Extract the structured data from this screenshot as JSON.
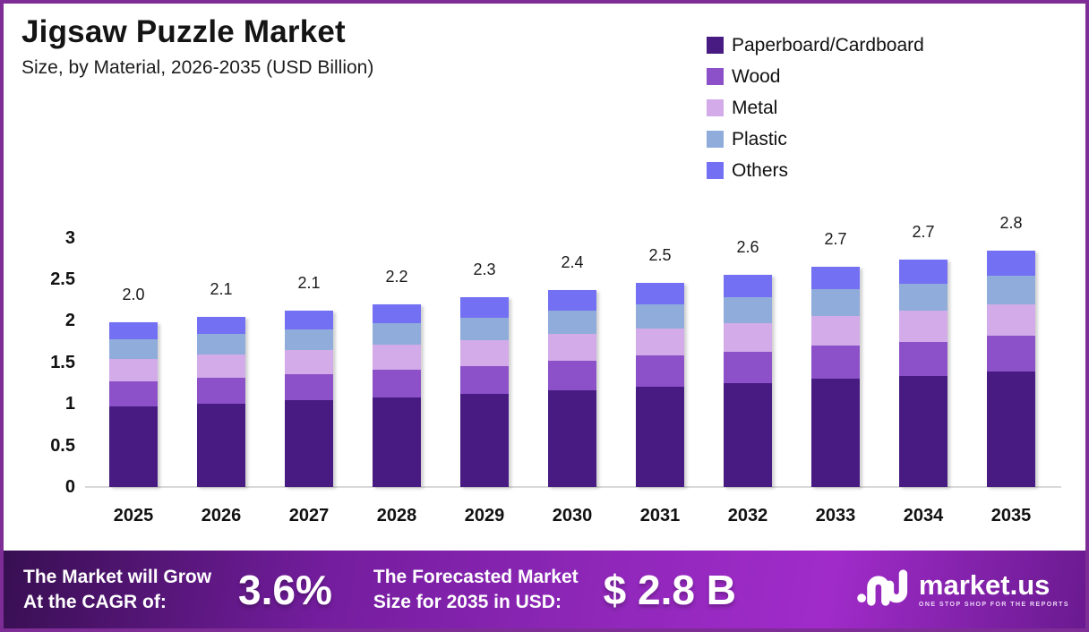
{
  "header": {
    "title": "Jigsaw Puzzle Market",
    "subtitle": "Size, by Material, 2026-2035 (USD Billion)"
  },
  "chart_data": {
    "type": "bar",
    "stacked": true,
    "title": "Jigsaw Puzzle Market",
    "subtitle": "Size, by Material, 2026-2035 (USD Billion)",
    "unit": "USD Billion",
    "categories": [
      "2025",
      "2026",
      "2027",
      "2028",
      "2029",
      "2030",
      "2031",
      "2032",
      "2033",
      "2034",
      "2035"
    ],
    "bar_total_labels": [
      "2.0",
      "2.1",
      "2.1",
      "2.2",
      "2.3",
      "2.4",
      "2.5",
      "2.6",
      "2.7",
      "2.7",
      "2.8"
    ],
    "series": [
      {
        "name": "Paperboard/Cardboard",
        "color": "#471B82",
        "values": [
          0.97,
          1.0,
          1.04,
          1.08,
          1.12,
          1.16,
          1.21,
          1.25,
          1.3,
          1.34,
          1.39
        ]
      },
      {
        "name": "Wood",
        "color": "#8C51C9",
        "values": [
          0.3,
          0.31,
          0.32,
          0.33,
          0.34,
          0.36,
          0.37,
          0.38,
          0.4,
          0.41,
          0.43
        ]
      },
      {
        "name": "Metal",
        "color": "#D2ABE8",
        "values": [
          0.27,
          0.28,
          0.29,
          0.3,
          0.31,
          0.32,
          0.33,
          0.34,
          0.36,
          0.37,
          0.38
        ]
      },
      {
        "name": "Plastic",
        "color": "#90ACDB",
        "values": [
          0.24,
          0.25,
          0.25,
          0.26,
          0.27,
          0.28,
          0.29,
          0.31,
          0.32,
          0.33,
          0.34
        ]
      },
      {
        "name": "Others",
        "color": "#7370F4",
        "values": [
          0.2,
          0.21,
          0.22,
          0.23,
          0.24,
          0.25,
          0.26,
          0.27,
          0.27,
          0.29,
          0.3
        ]
      }
    ],
    "y_ticks": [
      "0",
      "0.5",
      "1",
      "1.5",
      "2",
      "2.5",
      "3"
    ],
    "ylim": [
      0,
      3
    ],
    "grid": false,
    "legend_position": "top-right"
  },
  "footer": {
    "cagr_label_line1": "The Market will Grow",
    "cagr_label_line2": "At the CAGR of:",
    "cagr_value": "3.6%",
    "forecast_label_line1": "The Forecasted Market",
    "forecast_label_line2": "Size for 2035 in USD:",
    "forecast_value": "$ 2.8 B",
    "logo_text": "market.us",
    "logo_tagline": "ONE STOP SHOP FOR THE REPORTS"
  },
  "theme": {
    "border_color": "#7E2D96",
    "axis_line_color": "#D9D9D9",
    "banner_gradient_start": "#380F52",
    "banner_gradient_mid": "#9C2AC6",
    "banner_gradient_end": "#6A1A90"
  }
}
